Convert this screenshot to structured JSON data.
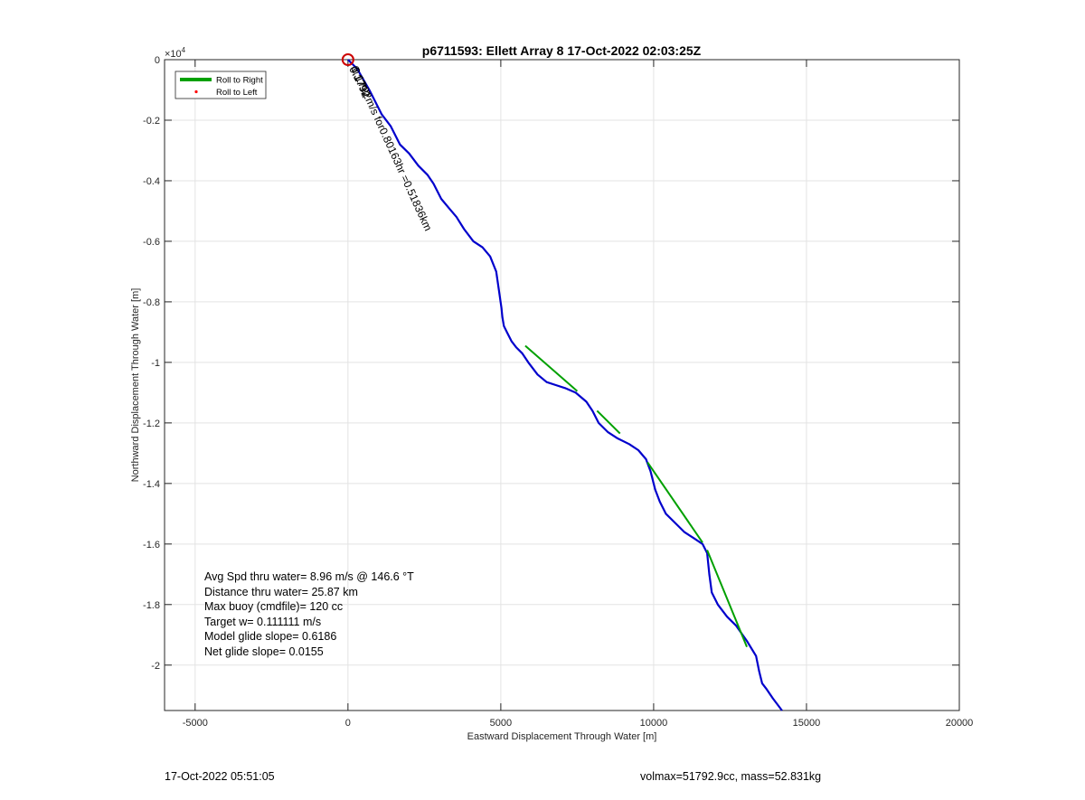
{
  "chart_data": {
    "type": "line",
    "title": "p6711593: Ellett Array 8 17-Oct-2022 02:03:25Z",
    "xlabel": "Eastward Displacement Through Water [m]",
    "ylabel": "Northward Displacement Through Water [m]",
    "y_exponent_label": "×10",
    "y_exponent_power": "4",
    "xlim": [
      -6000,
      20000
    ],
    "ylim": [
      -2.15,
      0
    ],
    "x_ticks": [
      -5000,
      0,
      5000,
      10000,
      15000,
      20000
    ],
    "x_tick_labels": [
      "-5000",
      "0",
      "5000",
      "10000",
      "15000",
      "20000"
    ],
    "y_ticks": [
      0,
      -0.2,
      -0.4,
      -0.6,
      -0.8,
      -1,
      -1.2,
      -1.4,
      -1.6,
      -1.8,
      -2
    ],
    "y_tick_labels": [
      "0",
      "-0.2",
      "-0.4",
      "-0.6",
      "-0.8",
      "-1",
      "-1.2",
      "-1.4",
      "-1.6",
      "-1.8",
      "-2"
    ],
    "grid": true,
    "legend_position": "top-left",
    "legend": [
      {
        "label": "Roll to Right",
        "color": "#00a000",
        "style": "line"
      },
      {
        "label": "Roll to Left",
        "color": "#ff0000",
        "style": "dot"
      }
    ],
    "series": [
      {
        "color": "#0000cc",
        "x": [
          0,
          300,
          700,
          1100,
          1400,
          1700,
          2000,
          2300,
          2600,
          2800,
          3050,
          3300,
          3550,
          3800,
          4100,
          4400,
          4650,
          4850,
          4950,
          5020,
          5050,
          5100,
          5200,
          5350,
          5500,
          5700,
          5900,
          6200,
          6500,
          6800,
          7100,
          7450,
          7800,
          8000,
          8200,
          8500,
          8800,
          9200,
          9500,
          9750,
          9900,
          10050,
          10200,
          10400,
          10700,
          11000,
          11300,
          11600,
          11750,
          11820,
          11900,
          12100,
          12400,
          12700,
          13050,
          13350,
          13450,
          13550,
          13700,
          13900,
          14200
        ],
        "y": [
          0,
          -0.03,
          -0.1,
          -0.18,
          -0.22,
          -0.28,
          -0.31,
          -0.35,
          -0.38,
          -0.41,
          -0.46,
          -0.49,
          -0.52,
          -0.56,
          -0.6,
          -0.62,
          -0.65,
          -0.7,
          -0.77,
          -0.82,
          -0.85,
          -0.88,
          -0.9,
          -0.93,
          -0.95,
          -0.97,
          -1.0,
          -1.04,
          -1.065,
          -1.075,
          -1.085,
          -1.1,
          -1.13,
          -1.16,
          -1.2,
          -1.23,
          -1.25,
          -1.27,
          -1.29,
          -1.32,
          -1.36,
          -1.42,
          -1.46,
          -1.5,
          -1.53,
          -1.56,
          -1.58,
          -1.6,
          -1.63,
          -1.7,
          -1.76,
          -1.8,
          -1.84,
          -1.87,
          -1.92,
          -1.97,
          -2.02,
          -2.06,
          -2.08,
          -2.11,
          -2.15
        ]
      },
      {
        "name": "Roll to Right",
        "color": "#00a000",
        "segments": [
          {
            "x": [
              5800,
              7500
            ],
            "y": [
              -0.945,
              -1.095
            ]
          },
          {
            "x": [
              8150,
              8900
            ],
            "y": [
              -1.16,
              -1.235
            ]
          },
          {
            "x": [
              9800,
              11600
            ],
            "y": [
              -1.33,
              -1.595
            ]
          },
          {
            "x": [
              11750,
              13050
            ],
            "y": [
              -1.62,
              -1.94
            ]
          }
        ]
      }
    ],
    "start_marker": {
      "x": 0,
      "y": 0,
      "color": "#cc0000"
    },
    "segment_label": "0.1792m/s for0.80163hr =0.51836km",
    "overlapping_labels": [
      "0.1792",
      "0.1792"
    ],
    "stats": [
      "Avg Spd thru water=  8.96 m/s @ 146.6 °T",
      "Distance thru water= 25.87 km",
      "Max buoy (cmdfile)= 120 cc",
      "Target w= 0.111111 m/s",
      "Model glide slope= 0.6186",
      "Net glide slope= 0.0155"
    ]
  },
  "footer": {
    "left": "17-Oct-2022 05:51:05",
    "right": "volmax=51792.9cc, mass=52.831kg"
  }
}
